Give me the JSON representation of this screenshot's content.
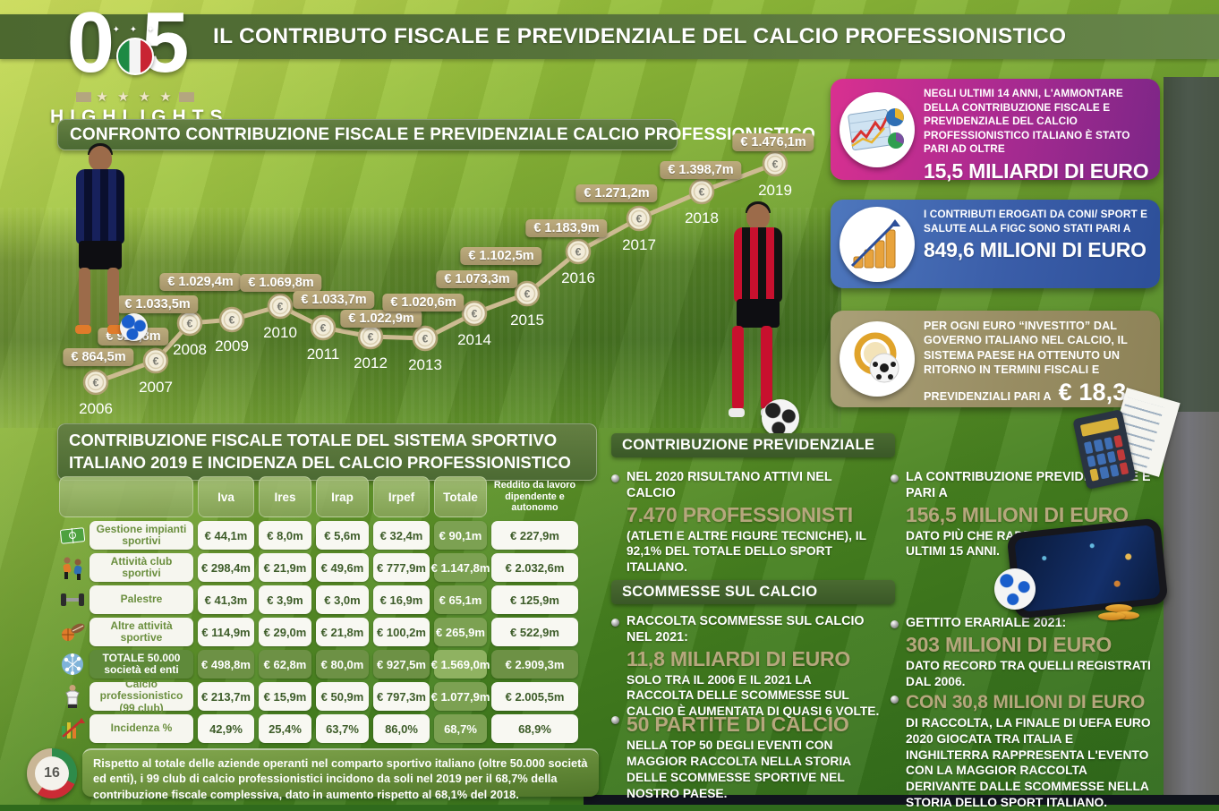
{
  "page": {
    "number": "16"
  },
  "header": {
    "chapter_number": "05",
    "chapter_label": "HIGHLIGHTS",
    "title": "IL CONTRIBUTO FISCALE E PREVIDENZIALE DEL CALCIO PROFESSIONISTICO"
  },
  "chart_section": {
    "title": "CONFRONTO CONTRIBUZIONE FISCALE E PREVIDENZIALE CALCIO PROFESSIONISTICO"
  },
  "chart_data": {
    "type": "line",
    "title": "Confronto contribuzione fiscale e previdenziale calcio professionistico",
    "x": [
      2006,
      2007,
      2008,
      2009,
      2010,
      2011,
      2012,
      2013,
      2014,
      2015,
      2016,
      2017,
      2018,
      2019
    ],
    "values": [
      864.5,
      925.8,
      1033.5,
      1029.4,
      1069.8,
      1033.7,
      1022.9,
      1020.6,
      1073.3,
      1102.5,
      1183.9,
      1271.2,
      1398.7,
      1476.1
    ],
    "labels": [
      "€ 864,5m",
      "€ 925,8m",
      "€ 1.033,5m",
      "€ 1.029,4m",
      "€ 1.069,8m",
      "€ 1.033,7m",
      "€ 1.022,9m",
      "€ 1.020,6m",
      "€ 1.073,3m",
      "€ 1.102,5m",
      "€ 1.183,9m",
      "€ 1.271,2m",
      "€ 1.398,7m",
      "€ 1.476,1m"
    ],
    "unit": "€ millions",
    "marker": "€",
    "line_color": "#cdbb92",
    "label_pill_color": "#b3a273",
    "legend": "none",
    "grid": false
  },
  "highlight_boxes": {
    "fiscal": {
      "icon": "growth-chart-icon",
      "text": "NEGLI ULTIMI 14 ANNI, L'AMMONTARE DELLA CONTRIBUZIONE FISCALE E PREVIDENZIALE DEL CALCIO PROFESSIONISTICO ITALIANO È STATO PARI AD OLTRE",
      "big": "15,5 MILIARDI DI EURO",
      "color_from": "#d93090",
      "color_to": "#7c2687"
    },
    "coni": {
      "icon": "coins-growth-icon",
      "text": "I CONTRIBUTI EROGATI DA CONI/ SPORT E SALUTE ALLA FIGC SONO STATI PARI A",
      "big": "849,6 MILIONI DI EURO",
      "color_from": "#4e77bd",
      "color_to": "#2d4f99"
    },
    "ritorno": {
      "icon": "euro-coin-ball-icon",
      "text": "PER OGNI EURO “INVESTITO” DAL GOVERNO ITALIANO NEL CALCIO, IL SISTEMA PAESE HA OTTENUTO UN RITORNO IN TERMINI FISCALI E PREVIDENZIALI PARI A",
      "big": "€ 18,3",
      "color_from": "#aaa078",
      "color_to": "#8d8257"
    }
  },
  "table_section": {
    "title": "CONTRIBUZIONE FISCALE TOTALE DEL SISTEMA SPORTIVO ITALIANO 2019 E INCIDENZA DEL CALCIO PROFESSIONISTICO"
  },
  "table": {
    "headers": [
      "",
      "Iva",
      "Ires",
      "Irap",
      "Irpef",
      "Totale",
      "Reddito da lavoro dipendente e autonomo"
    ],
    "rows": [
      {
        "icon": "sports-field-icon",
        "label": "Gestione impianti sportivi",
        "style": "normal",
        "values": [
          "€ 44,1m",
          "€ 8,0m",
          "€ 5,6m",
          "€ 32,4m",
          "€ 90,1m",
          "€ 227,9m"
        ]
      },
      {
        "icon": "athletes-icon",
        "label": "Attività club sportivi",
        "style": "normal",
        "values": [
          "€ 298,4m",
          "€ 21,9m",
          "€ 49,6m",
          "€ 777,9m",
          "€ 1.147,8m",
          "€ 2.032,6m"
        ]
      },
      {
        "icon": "dumbbell-icon",
        "label": "Palestre",
        "style": "normal",
        "values": [
          "€ 41,3m",
          "€ 3,9m",
          "€ 3,0m",
          "€ 16,9m",
          "€ 65,1m",
          "€ 125,9m"
        ]
      },
      {
        "icon": "sports-balls-icon",
        "label": "Altre attività sportive",
        "style": "normal",
        "values": [
          "€ 114,9m",
          "€ 29,0m",
          "€ 21,8m",
          "€ 100,2m",
          "€ 265,9m",
          "€ 522,9m"
        ]
      },
      {
        "icon": "network-icon",
        "label": "TOTALE 50.000 società ed enti",
        "style": "total",
        "values": [
          "€ 498,8m",
          "€ 62,8m",
          "€ 80,0m",
          "€ 927,5m",
          "€ 1.569,0m",
          "€ 2.909,3m"
        ]
      },
      {
        "icon": "player-icon",
        "label": "Calcio professionistico (99 club)",
        "style": "normal",
        "values": [
          "€ 213,7m",
          "€ 15,9m",
          "€ 50,9m",
          "€ 797,3m",
          "€ 1.077,9m",
          "€ 2.005,5m"
        ]
      },
      {
        "icon": "incidence-icon",
        "label": "Incidenza %",
        "style": "normal",
        "values": [
          "42,9%",
          "25,4%",
          "63,7%",
          "86,0%",
          "68,7%",
          "68,9%"
        ]
      }
    ],
    "footnote": "Rispetto al totale delle aziende operanti nel comparto sportivo italiano (oltre 50.000 società ed enti), i 99 club di calcio professionistici incidono da soli nel 2019 per il 68,7% della contribuzione fiscale complessiva, dato in aumento rispetto al 68,1% del 2018."
  },
  "previdenziale": {
    "title": "CONTRIBUZIONE PREVIDENZIALE",
    "bullets": [
      {
        "intro": "NEL 2020 RISULTANO ATTIVI NEL CALCIO",
        "big": "7.470 PROFESSIONISTI",
        "detail": "(ATLETI E ALTRE FIGURE TECNICHE), IL 92,1% DEL TOTALE DELLO SPORT ITALIANO."
      },
      {
        "intro": "LA CONTRIBUZIONE PREVIDENZIALE È PARI A",
        "big": "156,5 MILIONI DI EURO",
        "detail": "DATO PIÙ CHE RADDOPPIATO NEGLI ULTIMI 15 ANNI."
      }
    ]
  },
  "scommesse": {
    "title": "SCOMMESSE SUL CALCIO",
    "bullets": [
      {
        "intro": "RACCOLTA SCOMMESSE SUL CALCIO NEL 2021:",
        "big": "11,8 MILIARDI DI EURO",
        "detail": "SOLO TRA IL 2006 E IL 2021 LA RACCOLTA DELLE SCOMMESSE SUL CALCIO È AUMENTATA DI QUASI 6 VOLTE."
      },
      {
        "intro": "",
        "big": "50 PARTITE DI CALCIO",
        "detail": "NELLA TOP 50 DEGLI EVENTI CON MAGGIOR RACCOLTA NELLA STORIA DELLE SCOMMESSE SPORTIVE NEL NOSTRO PAESE."
      },
      {
        "intro": "GETTITO ERARIALE 2021:",
        "big": "303 MILIONI DI EURO",
        "detail": "DATO RECORD TRA QUELLI REGISTRATI DAL 2006."
      },
      {
        "intro": "",
        "big": "CON 30,8 MILIONI DI EURO",
        "detail": "DI RACCOLTA, LA FINALE DI UEFA EURO 2020 GIOCATA TRA ITALIA E INGHILTERRA RAPPRESENTA L'EVENTO CON LA MAGGIOR RACCOLTA DERIVANTE DALLE SCOMMESSE NELLA STORIA DELLO SPORT ITALIANO."
      }
    ]
  },
  "colors": {
    "accent_tan": "#b6a77d",
    "bar_green": "#3f5f2b",
    "pill_green": "#55713a",
    "value_pill": "#b3a273",
    "totale_col": "#7ca152",
    "totale_row": "#6d9145"
  }
}
